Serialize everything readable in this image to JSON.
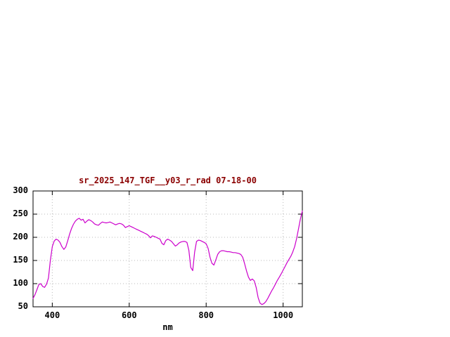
{
  "chart": {
    "title": "sr_2025_147_TGF__y03_r_rad 07-18-00",
    "xlabel": "nm",
    "line_color": "#cc00cc",
    "title_color": "#8b0000",
    "axis_text_color": "#000000",
    "y_ticks": [
      50,
      100,
      150,
      200,
      250,
      300
    ],
    "x_ticks": [
      400,
      600,
      800,
      1000
    ]
  },
  "chart_data": {
    "type": "line",
    "title": "sr_2025_147_TGF__y03_r_rad 07-18-00",
    "xlabel": "nm",
    "ylabel": "",
    "xlim": [
      350,
      1050
    ],
    "ylim": [
      50,
      300
    ],
    "grid": true,
    "legend": "none",
    "series": [
      {
        "name": "sr_2025_147_TGF__y03_r_rad",
        "color": "#cc00cc",
        "x": [
          350,
          355,
          360,
          365,
          370,
          375,
          380,
          385,
          390,
          395,
          400,
          405,
          410,
          415,
          420,
          425,
          430,
          435,
          440,
          445,
          450,
          455,
          460,
          465,
          470,
          475,
          480,
          485,
          490,
          495,
          500,
          505,
          510,
          515,
          520,
          525,
          530,
          535,
          540,
          545,
          550,
          555,
          560,
          565,
          570,
          575,
          580,
          585,
          590,
          595,
          600,
          605,
          610,
          615,
          620,
          625,
          630,
          635,
          640,
          645,
          650,
          655,
          660,
          665,
          670,
          675,
          680,
          685,
          690,
          695,
          700,
          705,
          710,
          715,
          720,
          725,
          730,
          735,
          740,
          745,
          750,
          755,
          760,
          765,
          770,
          775,
          780,
          785,
          790,
          795,
          800,
          805,
          810,
          815,
          820,
          825,
          830,
          835,
          840,
          845,
          850,
          855,
          860,
          865,
          870,
          875,
          880,
          885,
          890,
          895,
          900,
          905,
          910,
          915,
          920,
          925,
          930,
          935,
          940,
          945,
          950,
          955,
          960,
          965,
          970,
          975,
          980,
          985,
          990,
          995,
          1000,
          1005,
          1010,
          1015,
          1020,
          1025,
          1030,
          1035,
          1040,
          1045,
          1050
        ],
        "y": [
          68,
          76,
          87,
          98,
          100,
          94,
          92,
          99,
          112,
          150,
          180,
          192,
          196,
          194,
          189,
          180,
          174,
          179,
          192,
          207,
          219,
          228,
          235,
          239,
          241,
          237,
          239,
          231,
          235,
          238,
          236,
          233,
          229,
          227,
          226,
          230,
          233,
          232,
          231,
          232,
          233,
          231,
          229,
          227,
          229,
          230,
          229,
          226,
          221,
          223,
          225,
          223,
          221,
          219,
          217,
          215,
          213,
          211,
          209,
          207,
          204,
          199,
          203,
          202,
          200,
          198,
          196,
          187,
          184,
          193,
          196,
          194,
          191,
          186,
          181,
          184,
          188,
          190,
          191,
          191,
          189,
          172,
          135,
          128,
          168,
          191,
          194,
          193,
          191,
          189,
          186,
          176,
          157,
          144,
          140,
          151,
          163,
          169,
          171,
          171,
          170,
          169,
          169,
          168,
          167,
          167,
          166,
          165,
          163,
          157,
          143,
          127,
          114,
          107,
          110,
          106,
          92,
          70,
          58,
          55,
          57,
          61,
          68,
          76,
          84,
          91,
          99,
          107,
          114,
          121,
          129,
          137,
          145,
          152,
          159,
          168,
          180,
          197,
          218,
          240,
          257
        ]
      }
    ]
  }
}
